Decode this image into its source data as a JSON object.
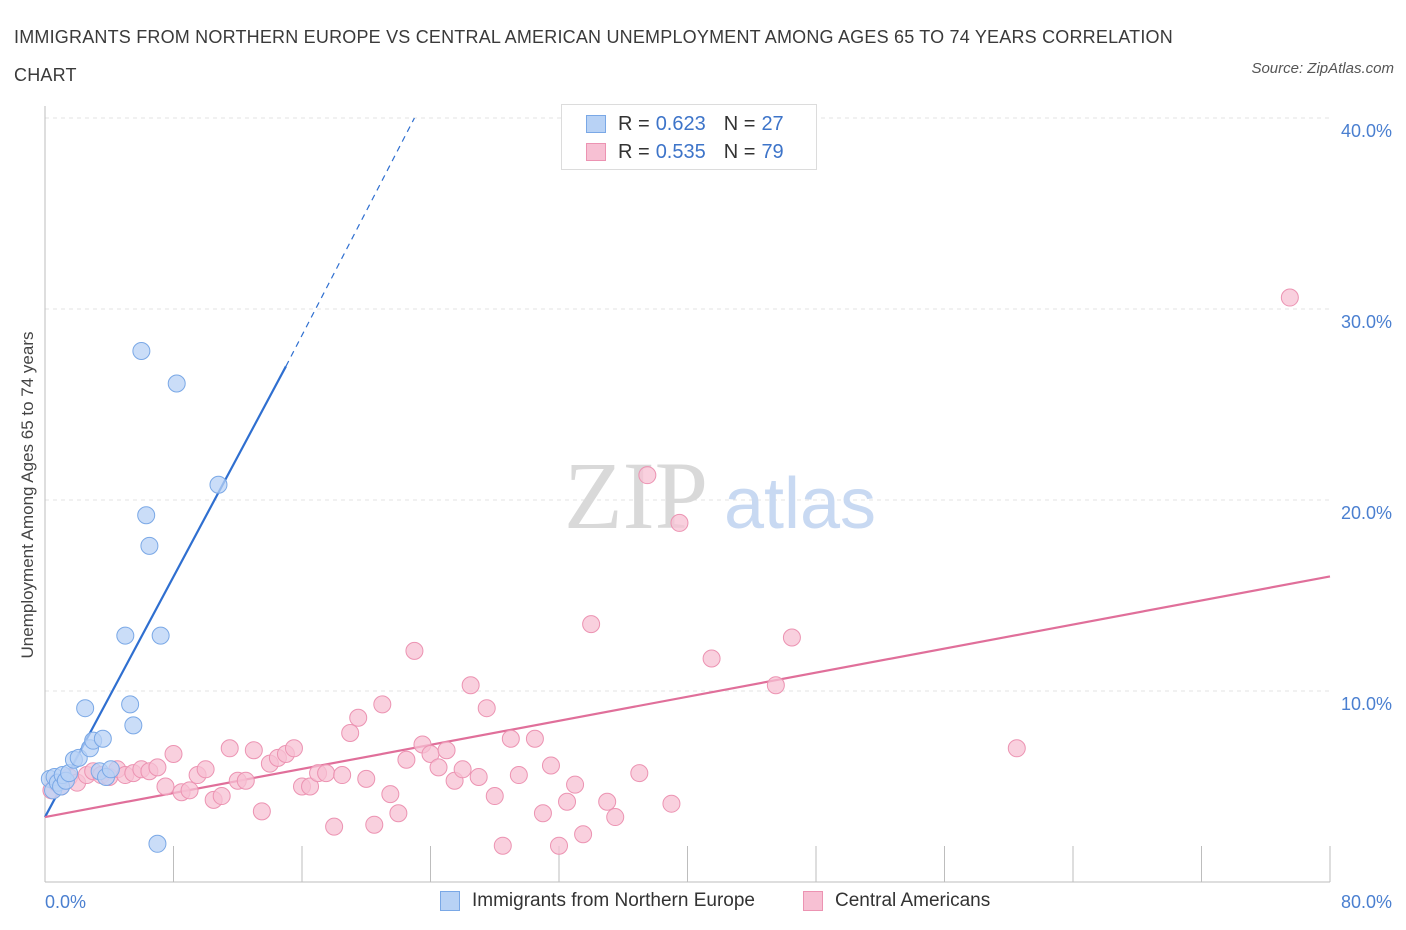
{
  "title": "IMMIGRANTS FROM NORTHERN EUROPE VS CENTRAL AMERICAN UNEMPLOYMENT AMONG AGES 65 TO 74 YEARS CORRELATION CHART",
  "source": "Source: ZipAtlas.com",
  "watermark": {
    "zip": "ZIP",
    "atlas": "atlas"
  },
  "legend_top": {
    "rows": [
      {
        "r_label": "R =",
        "r_value": "0.623",
        "n_label": "N =",
        "n_value": "27"
      },
      {
        "r_label": "R =",
        "r_value": "0.535",
        "n_label": "N =",
        "n_value": "79"
      }
    ]
  },
  "legend_bottom": [
    {
      "label": "Immigrants from Northern Europe"
    },
    {
      "label": "Central Americans"
    }
  ],
  "colors": {
    "blue_fill": "#b8d2f5",
    "blue_stroke": "#7aa8e6",
    "blue_line": "#2f6fd0",
    "pink_fill": "#f7c0d3",
    "pink_stroke": "#ec93b2",
    "pink_line": "#e06f9a",
    "axis_text": "#4a7fd0",
    "grid": "#e3e3e3"
  },
  "chart_data": {
    "type": "scatter",
    "title": "IMMIGRANTS FROM NORTHERN EUROPE VS CENTRAL AMERICAN UNEMPLOYMENT AMONG AGES 65 TO 74 YEARS CORRELATION CHART",
    "xlabel": "",
    "ylabel": "Unemployment Among Ages 65 to 74 years",
    "xlim": [
      0,
      80
    ],
    "ylim": [
      0,
      40
    ],
    "x_tick_labels": [
      "0.0%",
      "80.0%"
    ],
    "y_ticks": [
      10,
      20,
      30,
      40
    ],
    "y_tick_labels": [
      "10.0%",
      "20.0%",
      "30.0%",
      "40.0%"
    ],
    "grid": true,
    "legend_position": "bottom",
    "series": [
      {
        "name": "Immigrants from Northern Europe",
        "color": "#b8d2f5",
        "points": [
          [
            0.3,
            5.4
          ],
          [
            0.5,
            4.8
          ],
          [
            0.6,
            5.5
          ],
          [
            0.8,
            5.2
          ],
          [
            1.0,
            5.0
          ],
          [
            1.1,
            5.6
          ],
          [
            1.3,
            5.3
          ],
          [
            1.5,
            5.7
          ],
          [
            1.8,
            6.4
          ],
          [
            2.1,
            6.5
          ],
          [
            2.5,
            9.1
          ],
          [
            2.8,
            7.0
          ],
          [
            3.0,
            7.4
          ],
          [
            3.4,
            5.8
          ],
          [
            3.6,
            7.5
          ],
          [
            3.8,
            5.5
          ],
          [
            4.1,
            5.9
          ],
          [
            5.0,
            12.9
          ],
          [
            5.3,
            9.3
          ],
          [
            5.5,
            8.2
          ],
          [
            6.0,
            27.8
          ],
          [
            6.5,
            17.6
          ],
          [
            7.2,
            12.9
          ],
          [
            6.3,
            19.2
          ],
          [
            8.2,
            26.1
          ],
          [
            10.8,
            20.8
          ],
          [
            7.0,
            2.0
          ]
        ],
        "trend": {
          "x": [
            0,
            15.0
          ],
          "y": [
            3.4,
            27.0
          ],
          "dashed_to": [
            23.0,
            40.0
          ]
        }
      },
      {
        "name": "Central Americans",
        "color": "#f7c0d3",
        "points": [
          [
            0.4,
            4.8
          ],
          [
            0.7,
            5.2
          ],
          [
            1.0,
            5.0
          ],
          [
            1.5,
            5.5
          ],
          [
            2.0,
            5.2
          ],
          [
            2.6,
            5.6
          ],
          [
            3.0,
            5.8
          ],
          [
            3.5,
            5.6
          ],
          [
            4.0,
            5.5
          ],
          [
            4.5,
            5.9
          ],
          [
            5.0,
            5.6
          ],
          [
            5.5,
            5.7
          ],
          [
            6.0,
            5.9
          ],
          [
            6.5,
            5.8
          ],
          [
            7.0,
            6.0
          ],
          [
            7.5,
            5.0
          ],
          [
            8.0,
            6.7
          ],
          [
            8.5,
            4.7
          ],
          [
            9.0,
            4.8
          ],
          [
            9.5,
            5.6
          ],
          [
            10.0,
            5.9
          ],
          [
            10.5,
            4.3
          ],
          [
            11.0,
            4.5
          ],
          [
            11.5,
            7.0
          ],
          [
            12.0,
            5.3
          ],
          [
            12.5,
            5.3
          ],
          [
            13.0,
            6.9
          ],
          [
            13.5,
            3.7
          ],
          [
            14.0,
            6.2
          ],
          [
            14.5,
            6.5
          ],
          [
            15.0,
            6.7
          ],
          [
            15.5,
            7.0
          ],
          [
            16.0,
            5.0
          ],
          [
            16.5,
            5.0
          ],
          [
            17.0,
            5.7
          ],
          [
            17.5,
            5.7
          ],
          [
            18.0,
            2.9
          ],
          [
            18.5,
            5.6
          ],
          [
            19.0,
            7.8
          ],
          [
            19.5,
            8.6
          ],
          [
            20.0,
            5.4
          ],
          [
            20.5,
            3.0
          ],
          [
            21.0,
            9.3
          ],
          [
            21.5,
            4.6
          ],
          [
            22.0,
            3.6
          ],
          [
            22.5,
            6.4
          ],
          [
            23.0,
            12.1
          ],
          [
            23.5,
            7.2
          ],
          [
            24.0,
            6.7
          ],
          [
            24.5,
            6.0
          ],
          [
            25.0,
            6.9
          ],
          [
            25.5,
            5.3
          ],
          [
            26.0,
            5.9
          ],
          [
            26.5,
            10.3
          ],
          [
            27.0,
            5.5
          ],
          [
            27.5,
            9.1
          ],
          [
            28.0,
            4.5
          ],
          [
            28.5,
            1.9
          ],
          [
            29.0,
            7.5
          ],
          [
            29.5,
            5.6
          ],
          [
            30.5,
            7.5
          ],
          [
            31.0,
            3.6
          ],
          [
            31.5,
            6.1
          ],
          [
            32.0,
            1.9
          ],
          [
            32.5,
            4.2
          ],
          [
            33.0,
            5.1
          ],
          [
            33.5,
            2.5
          ],
          [
            34.0,
            13.5
          ],
          [
            35.0,
            4.2
          ],
          [
            35.5,
            3.4
          ],
          [
            37.0,
            5.7
          ],
          [
            37.5,
            21.3
          ],
          [
            39.0,
            4.1
          ],
          [
            39.5,
            18.8
          ],
          [
            41.5,
            11.7
          ],
          [
            45.5,
            10.3
          ],
          [
            46.5,
            12.8
          ],
          [
            60.5,
            7.0
          ],
          [
            77.5,
            30.6
          ]
        ],
        "trend": {
          "x": [
            0,
            80
          ],
          "y": [
            3.4,
            16.0
          ]
        }
      }
    ]
  }
}
